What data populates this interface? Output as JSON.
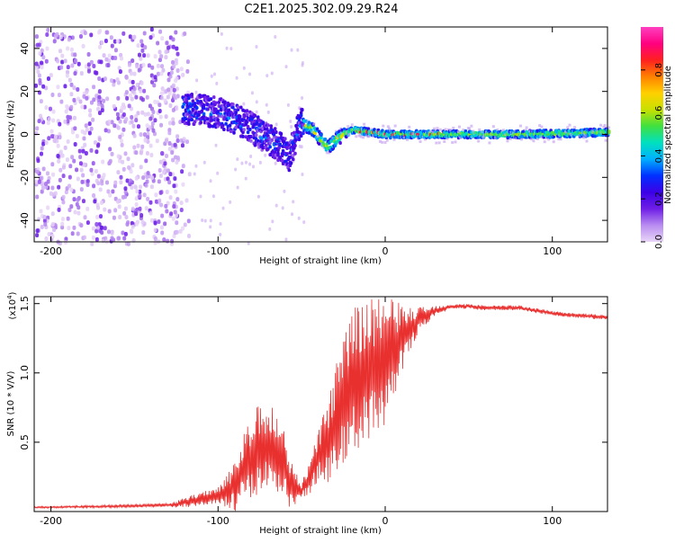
{
  "title": "C2E1.2025.302.09.29.R24",
  "chart_data": [
    {
      "type": "heatmap",
      "name": "spectrogram",
      "xlabel": "Height of straight line (km)",
      "ylabel": "Frequency (Hz)",
      "xlim": [
        -210,
        133
      ],
      "ylim": [
        -50,
        50
      ],
      "x_ticks": [
        -200,
        -100,
        0,
        100
      ],
      "y_ticks": [
        -40,
        -20,
        0,
        20,
        40
      ],
      "colorbar": {
        "label": "Normalized spectral amplitude",
        "range": [
          0,
          1
        ],
        "ticks": [
          "0.0",
          "0.2",
          "0.4",
          "0.6",
          "0.8"
        ],
        "colors": [
          "#e8d6f7",
          "#b98cf0",
          "#6f1ee6",
          "#3c00e6",
          "#0030ff",
          "#00b0ff",
          "#00e0c0",
          "#40e040",
          "#c8e000",
          "#ffd000",
          "#ff8000",
          "#ff2020",
          "#ff0080",
          "#ff40c0"
        ]
      },
      "ridge": {
        "x": [
          -120,
          -100,
          -85,
          -75,
          -65,
          -58,
          -52,
          -45,
          -40,
          -35,
          -30,
          -20,
          -10,
          0,
          20,
          50,
          80,
          110,
          133
        ],
        "y": [
          12,
          10,
          5,
          0,
          -5,
          -10,
          5,
          3,
          -2,
          -6,
          -2,
          2,
          1,
          0,
          0,
          0,
          0,
          0.5,
          1
        ]
      }
    },
    {
      "type": "line",
      "name": "snr",
      "xlabel": "Height of straight line (km)",
      "ylabel": "SNR (10 * V/V)",
      "scale_label": "(x10",
      "scale_exp": "4",
      "scale_close": ")",
      "xlim": [
        -210,
        133
      ],
      "ylim": [
        0,
        1.55
      ],
      "x_ticks": [
        -200,
        -100,
        0,
        100
      ],
      "y_ticks": [
        "0.5",
        "1.0",
        "1.5"
      ],
      "series_color": "#e8302f",
      "envelope": {
        "x": [
          -210,
          -150,
          -125,
          -115,
          -100,
          -90,
          -85,
          -80,
          -75,
          -70,
          -65,
          -60,
          -57,
          -50,
          -45,
          -40,
          -30,
          -25,
          -20,
          -15,
          -10,
          -5,
          0,
          10,
          20,
          30,
          40,
          50,
          60,
          70,
          80,
          90,
          100,
          110,
          120,
          133
        ],
        "y": [
          0.03,
          0.04,
          0.05,
          0.08,
          0.12,
          0.18,
          0.3,
          0.4,
          0.45,
          0.45,
          0.42,
          0.35,
          0.2,
          0.15,
          0.25,
          0.4,
          0.6,
          0.8,
          0.9,
          0.95,
          1.0,
          1.05,
          1.1,
          1.25,
          1.38,
          1.45,
          1.48,
          1.48,
          1.47,
          1.47,
          1.47,
          1.45,
          1.43,
          1.42,
          1.41,
          1.4
        ]
      },
      "noise": {
        "x": [
          -210,
          -130,
          -120,
          -100,
          -90,
          -80,
          -70,
          -60,
          -50,
          -40,
          -30,
          -20,
          -10,
          0,
          10,
          20,
          30,
          40,
          133
        ],
        "amp": [
          0.005,
          0.01,
          0.03,
          0.05,
          0.15,
          0.25,
          0.3,
          0.2,
          0.05,
          0.15,
          0.35,
          0.45,
          0.5,
          0.4,
          0.2,
          0.08,
          0.03,
          0.015,
          0.015
        ]
      }
    }
  ]
}
